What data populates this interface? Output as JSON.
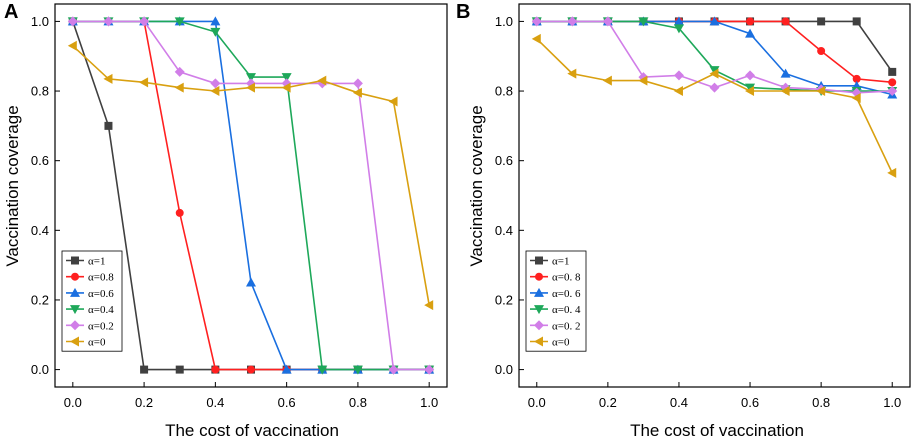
{
  "chart_data": [
    {
      "type": "line",
      "panel_label": "A",
      "xlabel": "The cost of vaccination",
      "ylabel": "Vaccination coverage",
      "xlim": [
        -0.05,
        1.05
      ],
      "ylim": [
        -0.05,
        1.05
      ],
      "x": [
        0.0,
        0.1,
        0.2,
        0.3,
        0.4,
        0.5,
        0.6,
        0.7,
        0.8,
        0.9,
        1.0
      ],
      "x_ticks": [
        "0.0",
        "0.2",
        "0.4",
        "0.6",
        "0.8",
        "1.0"
      ],
      "y_ticks": [
        "0.0",
        "0.2",
        "0.4",
        "0.6",
        "0.8",
        "1.0"
      ],
      "legend_position": "bottom-left",
      "series": [
        {
          "name": "α=1",
          "color": "#404040",
          "marker": "square",
          "values": [
            1.0,
            0.7,
            0.0,
            0.0,
            0.0,
            0.0,
            0.0,
            0.0,
            0.0,
            0.0,
            0.0
          ]
        },
        {
          "name": "α=0.8",
          "color": "#ff2020",
          "marker": "circle",
          "values": [
            1.0,
            1.0,
            1.0,
            0.45,
            0.0,
            0.0,
            0.0,
            0.0,
            0.0,
            0.0,
            0.0
          ]
        },
        {
          "name": "α=0.6",
          "color": "#1a6fe0",
          "marker": "triangle-up",
          "values": [
            1.0,
            1.0,
            1.0,
            1.0,
            1.0,
            0.25,
            0.0,
            0.0,
            0.0,
            0.0,
            0.0
          ]
        },
        {
          "name": "α=0.4",
          "color": "#1ea85a",
          "marker": "triangle-down",
          "values": [
            1.0,
            1.0,
            1.0,
            1.0,
            0.97,
            0.84,
            0.84,
            0.0,
            0.0,
            0.0,
            0.0
          ]
        },
        {
          "name": "α=0.2",
          "color": "#d17ee8",
          "marker": "diamond",
          "values": [
            1.0,
            1.0,
            1.0,
            0.855,
            0.822,
            0.822,
            0.822,
            0.822,
            0.822,
            0.0,
            0.0
          ]
        },
        {
          "name": "α=0",
          "color": "#d9a010",
          "marker": "triangle-left",
          "values": [
            0.93,
            0.835,
            0.825,
            0.81,
            0.8,
            0.81,
            0.81,
            0.83,
            0.795,
            0.77,
            0.185
          ]
        }
      ]
    },
    {
      "type": "line",
      "panel_label": "B",
      "xlabel": "The cost of vaccination",
      "ylabel": "Vaccination coverage",
      "xlim": [
        -0.05,
        1.05
      ],
      "ylim": [
        -0.05,
        1.05
      ],
      "x": [
        0.0,
        0.1,
        0.2,
        0.3,
        0.4,
        0.5,
        0.6,
        0.7,
        0.8,
        0.9,
        1.0
      ],
      "x_ticks": [
        "0.0",
        "0.2",
        "0.4",
        "0.6",
        "0.8",
        "1.0"
      ],
      "y_ticks": [
        "0.0",
        "0.2",
        "0.4",
        "0.6",
        "0.8",
        "1.0"
      ],
      "legend_position": "bottom-left",
      "series": [
        {
          "name": "α=1",
          "color": "#404040",
          "marker": "square",
          "values": [
            1.0,
            1.0,
            1.0,
            1.0,
            1.0,
            1.0,
            1.0,
            1.0,
            1.0,
            1.0,
            0.855
          ]
        },
        {
          "name": "α=0. 8",
          "color": "#ff2020",
          "marker": "circle",
          "values": [
            1.0,
            1.0,
            1.0,
            1.0,
            1.0,
            1.0,
            1.0,
            1.0,
            0.915,
            0.835,
            0.825
          ]
        },
        {
          "name": "α=0. 6",
          "color": "#1a6fe0",
          "marker": "triangle-up",
          "values": [
            1.0,
            1.0,
            1.0,
            1.0,
            1.0,
            1.0,
            0.965,
            0.85,
            0.815,
            0.815,
            0.79
          ]
        },
        {
          "name": "α=0. 4",
          "color": "#1ea85a",
          "marker": "triangle-down",
          "values": [
            1.0,
            1.0,
            1.0,
            1.0,
            0.98,
            0.86,
            0.81,
            0.805,
            0.8,
            0.8,
            0.8
          ]
        },
        {
          "name": "α=0. 2",
          "color": "#d17ee8",
          "marker": "diamond",
          "values": [
            1.0,
            1.0,
            1.0,
            0.84,
            0.845,
            0.81,
            0.845,
            0.81,
            0.805,
            0.795,
            0.8
          ]
        },
        {
          "name": "α=0",
          "color": "#d9a010",
          "marker": "triangle-left",
          "values": [
            0.95,
            0.85,
            0.83,
            0.83,
            0.8,
            0.85,
            0.8,
            0.8,
            0.8,
            0.78,
            0.565
          ]
        }
      ]
    }
  ]
}
